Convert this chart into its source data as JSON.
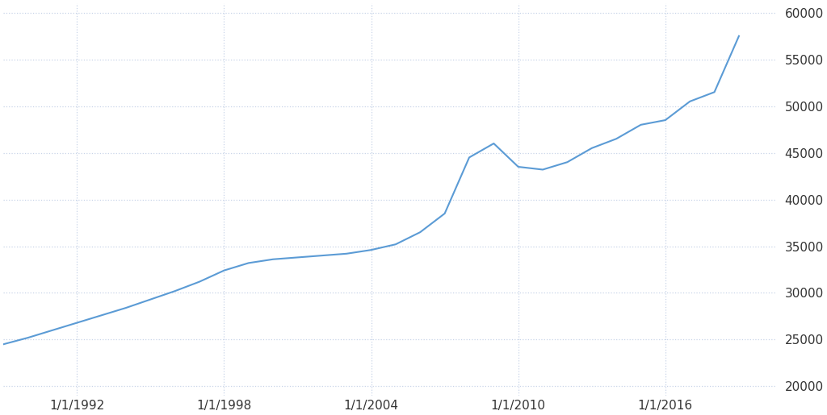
{
  "years": [
    1989,
    1990,
    1991,
    1992,
    1993,
    1994,
    1995,
    1996,
    1997,
    1998,
    1999,
    2000,
    2001,
    2002,
    2003,
    2004,
    2005,
    2006,
    2007,
    2008,
    2009,
    2010,
    2011,
    2012,
    2013,
    2014,
    2015,
    2016,
    2017,
    2018,
    2019
  ],
  "values": [
    24500,
    25200,
    26000,
    26800,
    27600,
    28400,
    29300,
    30200,
    31200,
    32400,
    33200,
    33600,
    33800,
    34000,
    34200,
    34600,
    35200,
    36500,
    38500,
    44500,
    46000,
    43500,
    43200,
    44000,
    45500,
    46500,
    48000,
    48500,
    50500,
    51500,
    57500
  ],
  "line_color": "#5b9bd5",
  "background_color": "#ffffff",
  "grid_color": "#c8d4e8",
  "grid_linestyle": ":",
  "tick_color": "#333333",
  "ylim": [
    19000,
    61000
  ],
  "yticks": [
    20000,
    25000,
    30000,
    35000,
    40000,
    45000,
    50000,
    55000,
    60000
  ],
  "xtick_years": [
    1992,
    1998,
    2004,
    2010,
    2016
  ],
  "xtick_labels": [
    "1/1/1992",
    "1/1/1998",
    "1/1/2004",
    "1/1/2010",
    "1/1/2016"
  ],
  "xlim_start": 1989.0,
  "xlim_end": 2020.5
}
